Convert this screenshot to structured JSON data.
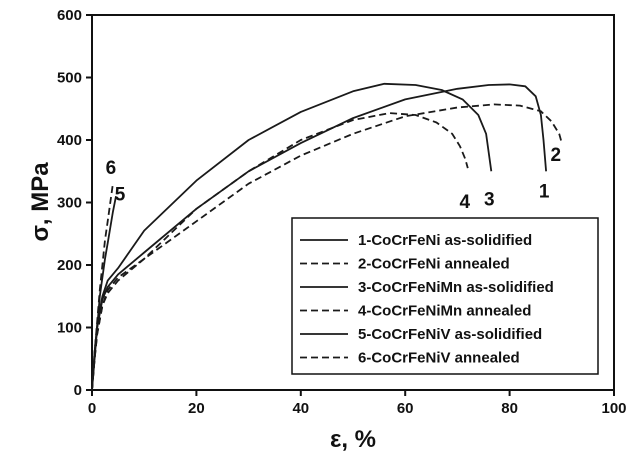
{
  "chart_data": {
    "type": "line",
    "xlabel": "ε, %",
    "ylabel": "σ, MPa",
    "xlim": [
      0,
      100
    ],
    "ylim": [
      0,
      600
    ],
    "xticks": [
      "0",
      "20",
      "40",
      "60",
      "80",
      "100"
    ],
    "yticks": [
      "0",
      "100",
      "200",
      "300",
      "400",
      "500",
      "600"
    ],
    "grid": false,
    "legend_position": "bottom-right",
    "series": [
      {
        "name": "1-CoCrFeNi as-solidified",
        "label": "1",
        "dash": "solid",
        "points": [
          [
            0,
            0
          ],
          [
            0.5,
            60
          ],
          [
            1,
            100
          ],
          [
            2,
            145
          ],
          [
            3,
            165
          ],
          [
            5,
            185
          ],
          [
            10,
            220
          ],
          [
            20,
            290
          ],
          [
            30,
            350
          ],
          [
            40,
            395
          ],
          [
            50,
            435
          ],
          [
            60,
            465
          ],
          [
            70,
            482
          ],
          [
            76,
            488
          ],
          [
            80,
            489
          ],
          [
            83,
            486
          ],
          [
            85,
            470
          ],
          [
            86,
            440
          ],
          [
            86.5,
            400
          ],
          [
            87,
            350
          ]
        ]
      },
      {
        "name": "2-CoCrFeNi annealed",
        "label": "2",
        "dash": "dashed",
        "points": [
          [
            0,
            0
          ],
          [
            0.5,
            50
          ],
          [
            1,
            90
          ],
          [
            2,
            135
          ],
          [
            3,
            160
          ],
          [
            5,
            180
          ],
          [
            10,
            210
          ],
          [
            20,
            270
          ],
          [
            30,
            330
          ],
          [
            40,
            375
          ],
          [
            50,
            410
          ],
          [
            60,
            438
          ],
          [
            70,
            452
          ],
          [
            77,
            457
          ],
          [
            82,
            455
          ],
          [
            86,
            446
          ],
          [
            88,
            430
          ],
          [
            89.5,
            410
          ],
          [
            90,
            395
          ]
        ]
      },
      {
        "name": "3-CoCrFeNiMn as-solidified",
        "label": "3",
        "dash": "solid",
        "points": [
          [
            0,
            0
          ],
          [
            0.5,
            60
          ],
          [
            1,
            105
          ],
          [
            2,
            150
          ],
          [
            3,
            175
          ],
          [
            5,
            195
          ],
          [
            10,
            255
          ],
          [
            20,
            335
          ],
          [
            30,
            400
          ],
          [
            40,
            445
          ],
          [
            50,
            478
          ],
          [
            56,
            490
          ],
          [
            62,
            488
          ],
          [
            67,
            480
          ],
          [
            71,
            465
          ],
          [
            74,
            440
          ],
          [
            75.5,
            410
          ],
          [
            76,
            380
          ],
          [
            76.5,
            350
          ]
        ]
      },
      {
        "name": "4-CoCrFeNiMn annealed",
        "label": "4",
        "dash": "dashed",
        "points": [
          [
            0,
            0
          ],
          [
            0.5,
            50
          ],
          [
            1,
            90
          ],
          [
            2,
            135
          ],
          [
            3,
            155
          ],
          [
            5,
            175
          ],
          [
            10,
            210
          ],
          [
            20,
            290
          ],
          [
            30,
            350
          ],
          [
            40,
            400
          ],
          [
            50,
            432
          ],
          [
            57,
            443
          ],
          [
            62,
            440
          ],
          [
            66,
            428
          ],
          [
            69,
            410
          ],
          [
            70.5,
            390
          ],
          [
            71.5,
            370
          ],
          [
            72,
            355
          ]
        ]
      },
      {
        "name": "5-CoCrFeNiV as-solidified",
        "label": "5",
        "dash": "solid",
        "points": [
          [
            0,
            0
          ],
          [
            0.6,
            60
          ],
          [
            1,
            100
          ],
          [
            1.5,
            150
          ],
          [
            2,
            180
          ],
          [
            2.5,
            210
          ],
          [
            3,
            235
          ],
          [
            3.5,
            260
          ],
          [
            4,
            285
          ],
          [
            4.6,
            310
          ]
        ]
      },
      {
        "name": "6-CoCrFeNiV annealed",
        "label": "6",
        "dash": "dashed",
        "points": [
          [
            0,
            0
          ],
          [
            0.5,
            60
          ],
          [
            1,
            110
          ],
          [
            1.5,
            160
          ],
          [
            2,
            200
          ],
          [
            2.5,
            240
          ],
          [
            3,
            270
          ],
          [
            3.5,
            300
          ],
          [
            4,
            330
          ]
        ]
      }
    ]
  }
}
